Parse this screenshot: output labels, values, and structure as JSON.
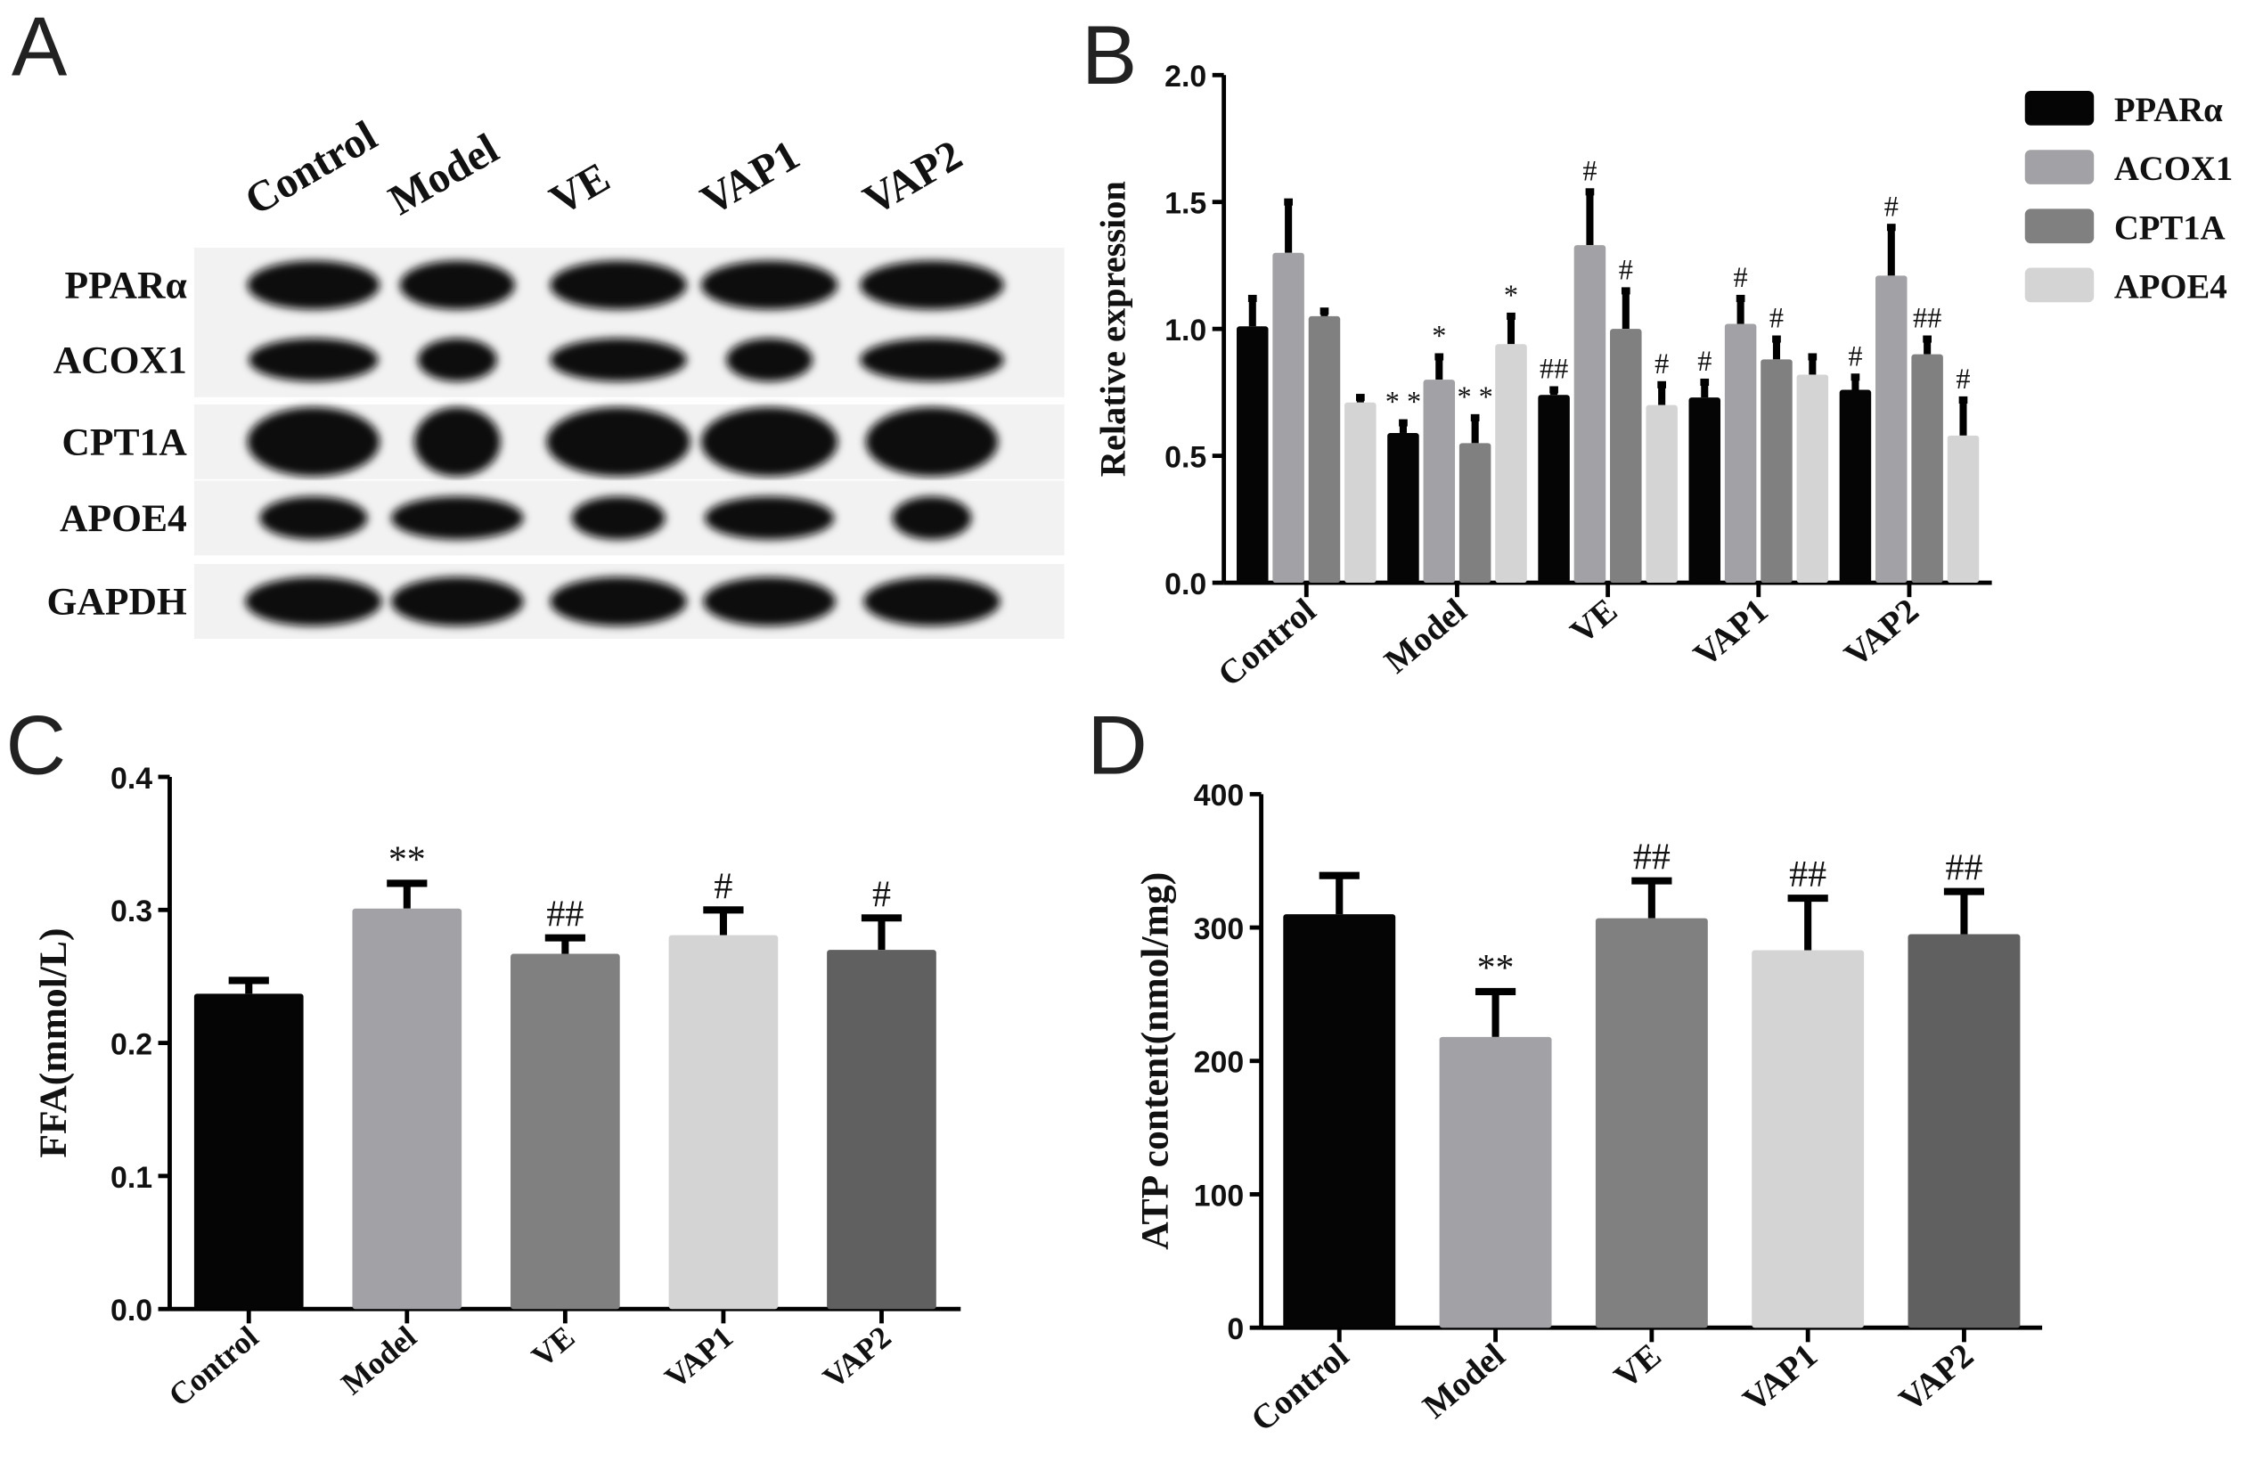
{
  "panels": {
    "a": "A",
    "b": "B",
    "c": "C",
    "d": "D"
  },
  "blot": {
    "lanes": [
      "Control",
      "Model",
      "VE",
      "VAP1",
      "VAP2"
    ],
    "proteins": [
      "PPARα",
      "ACOX1",
      "CPT1A",
      "APOE4",
      "GAPDH"
    ]
  },
  "chart_data": [
    {
      "type": "bar",
      "panel": "B",
      "categories": [
        "Control",
        "Model",
        "VE",
        "VAP1",
        "VAP2"
      ],
      "ylabel": "Relative expression",
      "ylim": [
        0,
        2.0
      ],
      "yticks": [
        "0.0",
        "0.5",
        "1.0",
        "1.5",
        "2.0"
      ],
      "legend_position": "right",
      "series": [
        {
          "name": "PPARα",
          "color": "#050505",
          "values": [
            1.01,
            0.59,
            0.74,
            0.73,
            0.76
          ],
          "error_top": [
            1.12,
            0.63,
            0.76,
            0.79,
            0.81
          ],
          "annotations": [
            "",
            "* *",
            "##",
            "#",
            "#"
          ]
        },
        {
          "name": "ACOX1",
          "color": "#a2a2a6",
          "values": [
            1.3,
            0.8,
            1.33,
            1.02,
            1.21
          ],
          "error_top": [
            1.5,
            0.89,
            1.54,
            1.12,
            1.4
          ],
          "annotations": [
            "",
            "*",
            "#",
            "#",
            "#"
          ]
        },
        {
          "name": "CPT1A",
          "color": "#808080",
          "values": [
            1.05,
            0.55,
            1.0,
            0.88,
            0.9
          ],
          "error_top": [
            1.07,
            0.65,
            1.15,
            0.96,
            0.96
          ],
          "annotations": [
            "",
            "* *",
            "#",
            "#",
            "##"
          ]
        },
        {
          "name": "APOE4",
          "color": "#d4d4d4",
          "values": [
            0.71,
            0.94,
            0.7,
            0.82,
            0.58
          ],
          "error_top": [
            0.73,
            1.05,
            0.78,
            0.89,
            0.72
          ],
          "annotations": [
            "",
            "*",
            "#",
            "",
            "#"
          ]
        }
      ]
    },
    {
      "type": "bar",
      "panel": "C",
      "categories": [
        "Control",
        "Model",
        "VE",
        "VAP1",
        "VAP2"
      ],
      "ylabel": "FFA(mmol/L)",
      "ylim": [
        0,
        0.4
      ],
      "yticks": [
        "0.0",
        "0.1",
        "0.2",
        "0.3",
        "0.4"
      ],
      "colors": [
        "#050505",
        "#a2a2a6",
        "#808080",
        "#d4d4d4",
        "#606060"
      ],
      "values": [
        0.237,
        0.301,
        0.267,
        0.281,
        0.27
      ],
      "error_top": [
        0.247,
        0.32,
        0.279,
        0.3,
        0.294
      ],
      "annotations": [
        "",
        "**",
        "##",
        "#",
        "#"
      ]
    },
    {
      "type": "bar",
      "panel": "D",
      "categories": [
        "Control",
        "Model",
        "VE",
        "VAP1",
        "VAP2"
      ],
      "ylabel": "ATP content(nmol/mg)",
      "ylim": [
        0,
        400
      ],
      "yticks": [
        "0",
        "100",
        "200",
        "300",
        "400"
      ],
      "colors": [
        "#050505",
        "#a2a2a6",
        "#808080",
        "#d4d4d4",
        "#606060"
      ],
      "values": [
        310,
        218,
        307,
        283,
        295
      ],
      "error_top": [
        339,
        252,
        335,
        322,
        327
      ],
      "annotations": [
        "",
        "**",
        "##",
        "##",
        "##"
      ]
    }
  ]
}
